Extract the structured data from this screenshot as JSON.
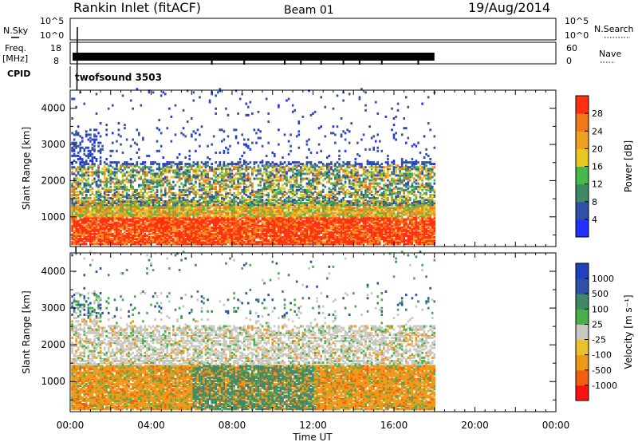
{
  "header": {
    "station": "Rankin Inlet (fitACF)",
    "beam": "Beam 01",
    "date": "19/Aug/2014"
  },
  "strips": {
    "nsky_label": "N.Sky",
    "nsky_ticks": [
      "10^5",
      "10^0"
    ],
    "nsearch_label": "N.Search",
    "freq_label": "Freq.",
    "freq_unit": "[MHz]",
    "freq_ticks": [
      "18",
      "8"
    ],
    "nave_ticks": [
      "60",
      "0"
    ],
    "nave_label": "Nave",
    "cpid_label": "CPID",
    "cpid_value": "twofsound 3503"
  },
  "chart_data": [
    {
      "type": "heatmap",
      "title": "",
      "xlabel": "Time UT",
      "ylabel": "Slant Range [km]",
      "x_ticks": [
        "00:00",
        "04:00",
        "08:00",
        "12:00",
        "16:00",
        "20:00",
        "00:00"
      ],
      "x_range_hours": [
        0,
        24
      ],
      "y_ticks": [
        1000,
        2000,
        3000,
        4000
      ],
      "y_range_km": [
        180,
        4500
      ],
      "data_end_hour": 18,
      "colorbar": {
        "label": "Power [dB]",
        "ticks": [
          "28",
          "24",
          "20",
          "16",
          "12",
          "8",
          "4"
        ],
        "colors": [
          "#2030ff",
          "#3050a8",
          "#3f8a66",
          "#49b84a",
          "#e6c820",
          "#f0a020",
          "#f07818",
          "#ff3010"
        ]
      }
    },
    {
      "type": "heatmap",
      "title": "",
      "xlabel": "Time UT",
      "ylabel": "Slant Range [km]",
      "x_ticks": [
        "00:00",
        "04:00",
        "08:00",
        "12:00",
        "16:00",
        "20:00",
        "00:00"
      ],
      "x_range_hours": [
        0,
        24
      ],
      "y_ticks": [
        1000,
        2000,
        3000,
        4000
      ],
      "y_range_km": [
        180,
        4500
      ],
      "data_end_hour": 18,
      "colorbar": {
        "label": "Velocity [m s⁻¹]",
        "ticks": [
          "1000",
          "500",
          "100",
          "25",
          "-25",
          "-100",
          "-500",
          "-1000"
        ],
        "colors": [
          "#ff1010",
          "#f06010",
          "#f09818",
          "#e8c030",
          "#c8c8c0",
          "#48b048",
          "#3f8a66",
          "#3050a8",
          "#2040c0"
        ]
      }
    }
  ]
}
